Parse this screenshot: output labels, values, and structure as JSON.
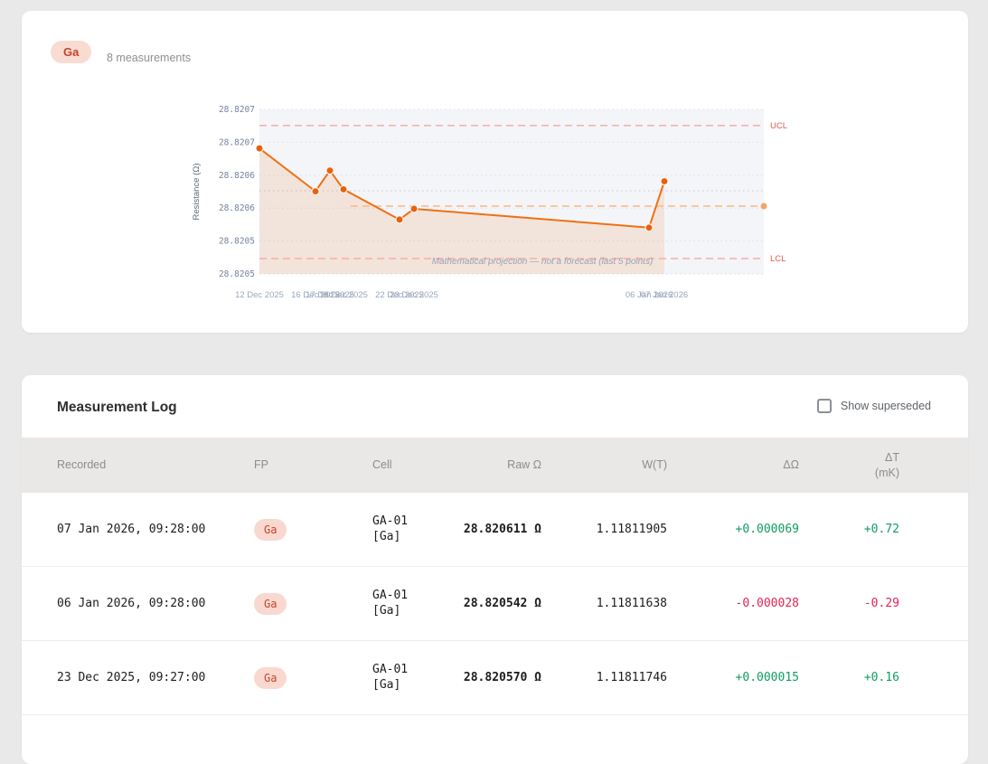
{
  "header": {
    "badge": "Ga",
    "count_label": "8 measurements"
  },
  "chart_data": {
    "type": "line",
    "title": "",
    "ylabel": "Resistance (Ω)",
    "x_labels": [
      "12 Dec 2025",
      "16 Dec 2025",
      "17 Dec 2025",
      "18 Dec 2025",
      "22 Dec 2025",
      "23 Dec 2025",
      "06 Jan 2026",
      "07 Jan 2026"
    ],
    "values": [
      28.82066,
      28.820596,
      28.820627,
      28.820599,
      28.820554,
      28.82057,
      28.820542,
      28.820611
    ],
    "y_ticks": [
      "28.8207",
      "28.8207",
      "28.8206",
      "28.8206",
      "28.8205",
      "28.8205"
    ],
    "ylim": [
      28.820473,
      28.820718
    ],
    "ucl": 28.820694,
    "lcl": 28.820496,
    "ucl_label": "UCL",
    "lcl_label": "LCL",
    "projection_value": 28.820574,
    "projection_start_index": 3,
    "annotation": "Mathematical projection — not a forecast (last 5 points)",
    "grid": true,
    "legend_position": "none",
    "colors": {
      "line": "#ef7014",
      "marker": "#e7610d",
      "fill": "rgba(238,113,18,0.13)",
      "plot_bg": "#f3f5f9",
      "grid": "#e2e5ec",
      "sigma_line": "#ccd2dc",
      "control_line": "#f5a9a1",
      "control_label": "#e15b51",
      "projection": "#f9bd8b",
      "projection_dot": "#f2a564",
      "tick_text": "#75829e",
      "x_tick_text": "#9aa7bd",
      "annotation_text": "#99a2b6"
    }
  },
  "measurement_log": {
    "title": "Measurement Log",
    "show_superseded_label": "Show superseded",
    "show_superseded_checked": false,
    "columns": [
      {
        "label": "Recorded"
      },
      {
        "label": "FP"
      },
      {
        "label": "Cell"
      },
      {
        "label": "Raw Ω"
      },
      {
        "label": "W(T)"
      },
      {
        "label": "ΔΩ"
      },
      {
        "label": "ΔT",
        "sub": "(mK)"
      }
    ],
    "rows": [
      {
        "recorded": "07 Jan 2026, 09:28:00",
        "fp": "Ga",
        "cell": "GA-01 [Ga]",
        "raw": "28.820611 Ω",
        "wt": "1.11811905",
        "d_ohm": "+0.000069",
        "d_t": "+0.72"
      },
      {
        "recorded": "06 Jan 2026, 09:28:00",
        "fp": "Ga",
        "cell": "GA-01 [Ga]",
        "raw": "28.820542 Ω",
        "wt": "1.11811638",
        "d_ohm": "-0.000028",
        "d_t": "-0.29"
      },
      {
        "recorded": "23 Dec 2025, 09:27:00",
        "fp": "Ga",
        "cell": "GA-01 [Ga]",
        "raw": "28.820570 Ω",
        "wt": "1.11811746",
        "d_ohm": "+0.000015",
        "d_t": "+0.16"
      }
    ]
  }
}
